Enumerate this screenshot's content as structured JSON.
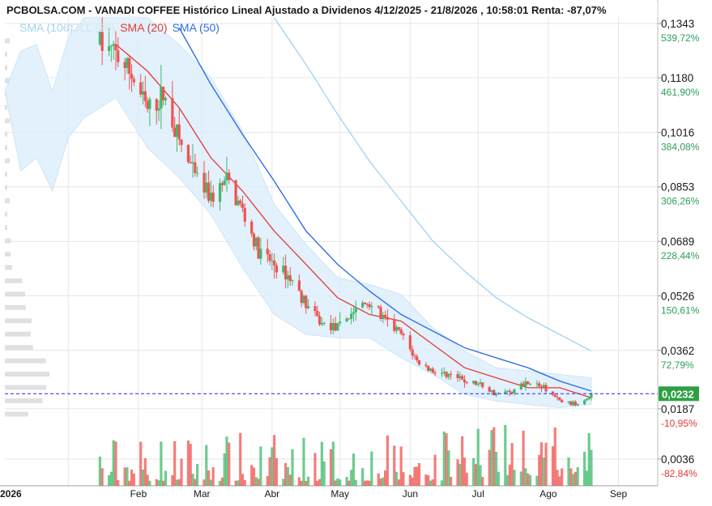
{
  "title": "PCBOLSA.COM - VANADI COFFEE Histórico Lineal Ajustado a Dividenos 4/12/2025 - 21/8/2026 , 10:58:01 Renta: -87,07%",
  "legend": [
    {
      "label": "SMA (100)",
      "color": "#9ed3f2"
    },
    {
      "label": "BOLL (20)",
      "color": "#d6e6f2"
    },
    {
      "label": "SMA (20)",
      "color": "#e53935"
    },
    {
      "label": "SMA (50)",
      "color": "#2f6fe6"
    }
  ],
  "colors": {
    "up": "#3fb96a",
    "down": "#ef5350",
    "band": "#dbeefb",
    "grid": "#e6e6e6",
    "current": "#2ea043",
    "pct_up": "#2e9e5b",
    "pct_down": "#e53935"
  },
  "price_axis": [
    {
      "price": "0,1343",
      "pct": "539,72%",
      "pct_color": "#2e9e5b"
    },
    {
      "price": "0,1180",
      "pct": "461,90%",
      "pct_color": "#2e9e5b"
    },
    {
      "price": "0,1016",
      "pct": "384,08%",
      "pct_color": "#2e9e5b"
    },
    {
      "price": "0,0853",
      "pct": "306,26%",
      "pct_color": "#2e9e5b"
    },
    {
      "price": "0,0689",
      "pct": "228,44%",
      "pct_color": "#2e9e5b"
    },
    {
      "price": "0,0526",
      "pct": "150,61%",
      "pct_color": "#2e9e5b"
    },
    {
      "price": "0,0362",
      "pct": "72,79%",
      "pct_color": "#2e9e5b"
    },
    {
      "price": "0,0187",
      "pct": "-10,95%",
      "pct_color": "#e53935"
    },
    {
      "price": "0,0036",
      "pct": "-82,84%",
      "pct_color": "#e53935"
    }
  ],
  "current_price": "0,0232",
  "months": [
    "2026",
    "Feb",
    "Mar",
    "Abr",
    "May",
    "Jun",
    "Jul",
    "Ago",
    "Sep"
  ],
  "chart_data": {
    "type": "candlestick",
    "title": "PCBOLSA.COM - VANADI COFFEE Histórico Lineal Ajustado a Dividenos 4/12/2025 - 21/8/2026 , 10:58:01 Renta: -87,07%",
    "ylim": [
      0.0036,
      0.1343
    ],
    "x_range": [
      "2025-12-04",
      "2026-08-21"
    ],
    "close_path": [
      [
        "2026-01-15",
        0.128
      ],
      [
        "2026-01-22",
        0.125
      ],
      [
        "2026-01-29",
        0.119
      ],
      [
        "2026-02-05",
        0.108
      ],
      [
        "2026-02-12",
        0.113
      ],
      [
        "2026-02-19",
        0.099
      ],
      [
        "2026-02-26",
        0.088
      ],
      [
        "2026-03-05",
        0.082
      ],
      [
        "2026-03-12",
        0.087
      ],
      [
        "2026-03-19",
        0.078
      ],
      [
        "2026-03-26",
        0.066
      ],
      [
        "2026-04-02",
        0.062
      ],
      [
        "2026-04-09",
        0.058
      ],
      [
        "2026-04-16",
        0.05
      ],
      [
        "2026-04-23",
        0.044
      ],
      [
        "2026-04-30",
        0.043
      ],
      [
        "2026-05-07",
        0.048
      ],
      [
        "2026-05-14",
        0.051
      ],
      [
        "2026-05-21",
        0.045
      ],
      [
        "2026-05-28",
        0.041
      ],
      [
        "2026-06-04",
        0.033
      ],
      [
        "2026-06-11",
        0.03
      ],
      [
        "2026-06-18",
        0.029
      ],
      [
        "2026-06-25",
        0.027
      ],
      [
        "2026-07-02",
        0.026
      ],
      [
        "2026-07-09",
        0.023
      ],
      [
        "2026-07-16",
        0.024
      ],
      [
        "2026-07-23",
        0.027
      ],
      [
        "2026-07-30",
        0.025
      ],
      [
        "2026-08-06",
        0.021
      ],
      [
        "2026-08-13",
        0.02
      ],
      [
        "2026-08-20",
        0.0232
      ]
    ],
    "sma20": [
      [
        "2026-01-22",
        0.128
      ],
      [
        "2026-02-05",
        0.12
      ],
      [
        "2026-02-19",
        0.109
      ],
      [
        "2026-03-05",
        0.094
      ],
      [
        "2026-03-19",
        0.084
      ],
      [
        "2026-04-02",
        0.072
      ],
      [
        "2026-04-16",
        0.062
      ],
      [
        "2026-04-30",
        0.052
      ],
      [
        "2026-05-14",
        0.047
      ],
      [
        "2026-05-28",
        0.045
      ],
      [
        "2026-06-11",
        0.038
      ],
      [
        "2026-06-25",
        0.031
      ],
      [
        "2026-07-09",
        0.028
      ],
      [
        "2026-07-23",
        0.025
      ],
      [
        "2026-08-06",
        0.025
      ],
      [
        "2026-08-20",
        0.022
      ]
    ],
    "sma50": [
      [
        "2026-02-19",
        0.133
      ],
      [
        "2026-03-05",
        0.116
      ],
      [
        "2026-03-19",
        0.101
      ],
      [
        "2026-04-02",
        0.087
      ],
      [
        "2026-04-16",
        0.072
      ],
      [
        "2026-04-30",
        0.062
      ],
      [
        "2026-05-14",
        0.054
      ],
      [
        "2026-05-28",
        0.047
      ],
      [
        "2026-06-11",
        0.042
      ],
      [
        "2026-06-25",
        0.037
      ],
      [
        "2026-07-09",
        0.034
      ],
      [
        "2026-07-23",
        0.031
      ],
      [
        "2026-08-06",
        0.027
      ],
      [
        "2026-08-20",
        0.024
      ]
    ],
    "sma100": [
      [
        "2026-04-02",
        0.136
      ],
      [
        "2026-04-16",
        0.122
      ],
      [
        "2026-04-30",
        0.107
      ],
      [
        "2026-05-14",
        0.093
      ],
      [
        "2026-05-28",
        0.081
      ],
      [
        "2026-06-11",
        0.069
      ],
      [
        "2026-06-25",
        0.06
      ],
      [
        "2026-07-09",
        0.052
      ],
      [
        "2026-07-23",
        0.046
      ],
      [
        "2026-08-06",
        0.041
      ],
      [
        "2026-08-20",
        0.036
      ]
    ],
    "boll20": [
      [
        "2025-12-04",
        0.114,
        0.114
      ],
      [
        "2025-12-11",
        0.126,
        0.09
      ],
      [
        "2025-12-18",
        0.128,
        0.094
      ],
      [
        "2025-12-25",
        0.114,
        0.084
      ],
      [
        "2026-01-01",
        0.13,
        0.1
      ],
      [
        "2026-01-08",
        0.136,
        0.106
      ],
      [
        "2026-01-22",
        0.137,
        0.112
      ],
      [
        "2026-02-05",
        0.136,
        0.097
      ],
      [
        "2026-02-19",
        0.128,
        0.088
      ],
      [
        "2026-03-05",
        0.118,
        0.077
      ],
      [
        "2026-03-19",
        0.102,
        0.061
      ],
      [
        "2026-04-02",
        0.08,
        0.047
      ],
      [
        "2026-04-16",
        0.068,
        0.041
      ],
      [
        "2026-04-30",
        0.058,
        0.04
      ],
      [
        "2026-05-14",
        0.056,
        0.04
      ],
      [
        "2026-05-28",
        0.053,
        0.034
      ],
      [
        "2026-06-11",
        0.043,
        0.029
      ],
      [
        "2026-06-25",
        0.036,
        0.023
      ],
      [
        "2026-07-09",
        0.031,
        0.021
      ],
      [
        "2026-07-23",
        0.03,
        0.02
      ],
      [
        "2026-08-06",
        0.029,
        0.019
      ],
      [
        "2026-08-20",
        0.028,
        0.02
      ]
    ]
  }
}
